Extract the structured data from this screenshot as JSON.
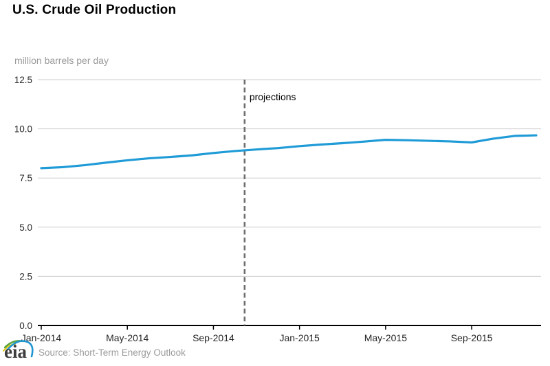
{
  "header": {
    "title": "U.S. Crude Oil Production"
  },
  "chart_data": {
    "type": "line",
    "title": "U.S. Crude Oil Production",
    "units_label": "million barrels per day",
    "x": [
      "Jan-2014",
      "Feb-2014",
      "Mar-2014",
      "Apr-2014",
      "May-2014",
      "Jun-2014",
      "Jul-2014",
      "Aug-2014",
      "Sep-2014",
      "Oct-2014",
      "Nov-2014",
      "Dec-2014",
      "Jan-2015",
      "Feb-2015",
      "Mar-2015",
      "Apr-2015",
      "May-2015",
      "Jun-2015",
      "Jul-2015",
      "Aug-2015",
      "Sep-2015",
      "Oct-2015",
      "Nov-2015",
      "Dec-2015"
    ],
    "series": [
      {
        "name": "U.S. crude oil production",
        "values": [
          8.0,
          8.05,
          8.15,
          8.28,
          8.4,
          8.5,
          8.57,
          8.65,
          8.77,
          8.87,
          8.95,
          9.02,
          9.12,
          9.2,
          9.27,
          9.35,
          9.44,
          9.42,
          9.39,
          9.36,
          9.31,
          9.5,
          9.64,
          9.67
        ]
      }
    ],
    "x_tick_labels": [
      "Jan-2014",
      "May-2014",
      "Sep-2014",
      "Jan-2015",
      "May-2015",
      "Sep-2015"
    ],
    "x_tick_indices": [
      0,
      4,
      8,
      12,
      16,
      20
    ],
    "y_tick_values": [
      0.0,
      2.5,
      5.0,
      7.5,
      10.0,
      12.5
    ],
    "y_tick_labels": [
      "0.0",
      "2.5",
      "5.0",
      "7.5",
      "10.0",
      "12.5"
    ],
    "ylim": [
      0,
      12.5
    ],
    "grid": "horizontal",
    "legend": "none",
    "projection": {
      "label": "projections",
      "boundary_month_index": 9.45
    },
    "colors": {
      "line": "#1f9bd7",
      "grid": "#cccccc",
      "axis": "#000000",
      "projection_line": "#6e6e6e",
      "muted_text": "#9a9a9a",
      "tick_text": "#262626",
      "projection_text": "#000000"
    }
  },
  "footer": {
    "logo_text": "eia",
    "source": "Source: Short-Term Energy Outlook"
  }
}
